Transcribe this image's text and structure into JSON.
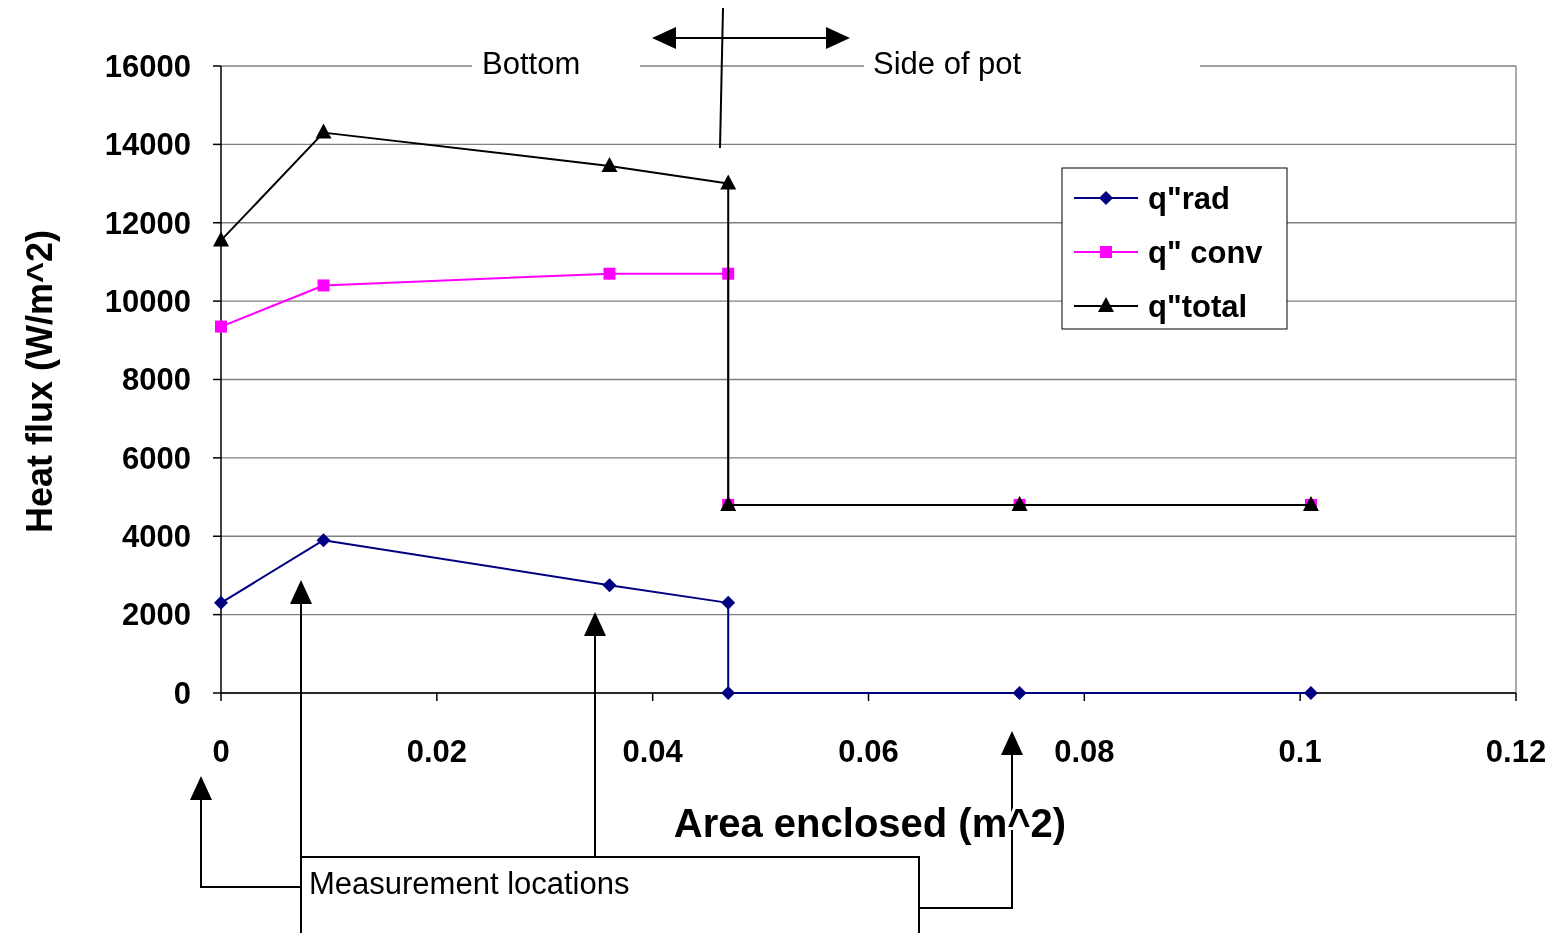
{
  "chart_data": {
    "type": "line",
    "xlabel": "Area enclosed (m^2)",
    "ylabel": "Heat flux (W/m^2)",
    "xlim": [
      0,
      0.12
    ],
    "xticks": [
      0,
      0.02,
      0.04,
      0.06,
      0.08,
      0.1,
      0.12
    ],
    "ylim": [
      0,
      16000
    ],
    "yticks": [
      0,
      2000,
      4000,
      6000,
      8000,
      10000,
      12000,
      14000,
      16000
    ],
    "grid": "y",
    "legend": "top right",
    "series": [
      {
        "name": "q\"rad",
        "color": "#000080",
        "marker": "diamond",
        "x": [
          0,
          0.0095,
          0.036,
          0.047,
          0.047,
          0.074,
          0.101
        ],
        "values": [
          2300,
          3900,
          2750,
          2300,
          0,
          0,
          0
        ]
      },
      {
        "name": "q\" conv",
        "color": "#ff00ff",
        "marker": "square",
        "x": [
          0,
          0.0095,
          0.036,
          0.047,
          0.047,
          0.074,
          0.101
        ],
        "values": [
          9350,
          10400,
          10700,
          10700,
          4800,
          4800,
          4800
        ]
      },
      {
        "name": "q\"total",
        "color": "#000000",
        "marker": "triangle",
        "x": [
          0,
          0.0095,
          0.036,
          0.047,
          0.047,
          0.074,
          0.101
        ],
        "values": [
          11550,
          14300,
          13450,
          13000,
          4800,
          4800,
          4800
        ]
      }
    ],
    "annotations": [
      "Bottom",
      "Side of pot",
      "Measurement locations"
    ]
  }
}
